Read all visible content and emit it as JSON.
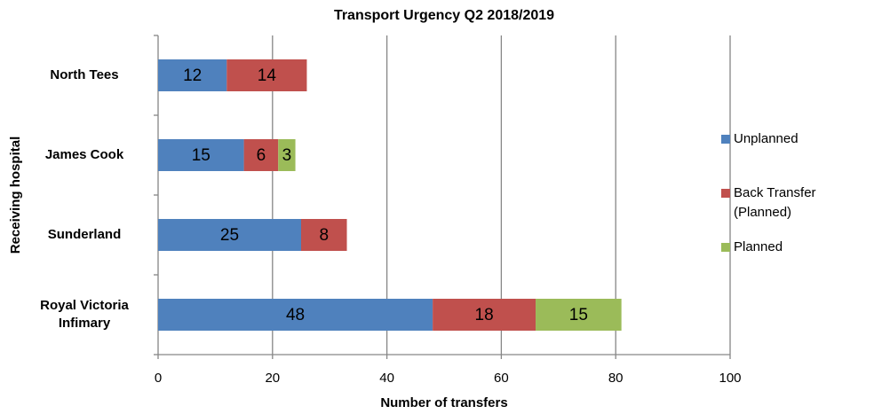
{
  "chart_data": {
    "type": "stacked_barh",
    "title": "Transport Urgency Q2 2018/2019",
    "xlabel": "Number of transfers",
    "ylabel": "Receiving hospital",
    "categories": [
      "North Tees",
      "James Cook",
      "Sunderland",
      "Royal Victoria Infimary"
    ],
    "series": [
      {
        "name": "Unplanned",
        "color": "#4f81bd",
        "values": [
          12,
          15,
          25,
          48
        ]
      },
      {
        "name": "Back Transfer (Planned)",
        "color": "#c0504d",
        "values": [
          14,
          6,
          8,
          18
        ]
      },
      {
        "name": "Planned",
        "color": "#9bbb59",
        "values": [
          null,
          3,
          null,
          15
        ]
      }
    ],
    "xlim": [
      0,
      100
    ],
    "xticks": [
      0,
      20,
      40,
      60,
      80,
      100
    ],
    "grid": true,
    "legend": "right"
  }
}
